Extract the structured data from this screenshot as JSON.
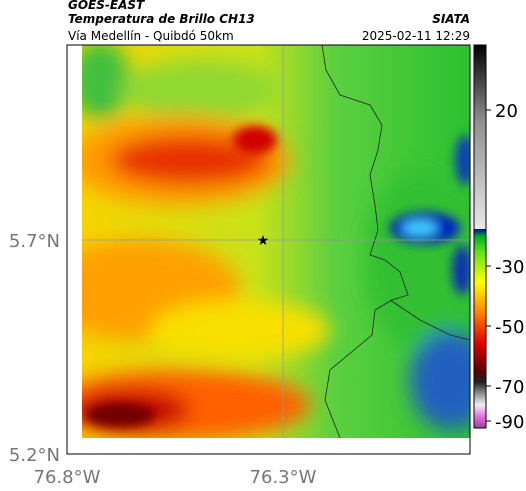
{
  "header": {
    "source": "GOES-EAST",
    "product": "Temperatura de Brillo CH13",
    "agency": "SIATA",
    "route": "Vía Medellín - Quibdó 50km",
    "timestamp": "2025-02-11 12:29"
  },
  "map": {
    "lat_labels": [
      "5.7°N",
      "5.2°N"
    ],
    "lon_labels": [
      "76.8°W",
      "76.3°W"
    ]
  },
  "colorbar": {
    "ticks": [
      20,
      -30,
      -50,
      -70,
      -90
    ]
  }
}
